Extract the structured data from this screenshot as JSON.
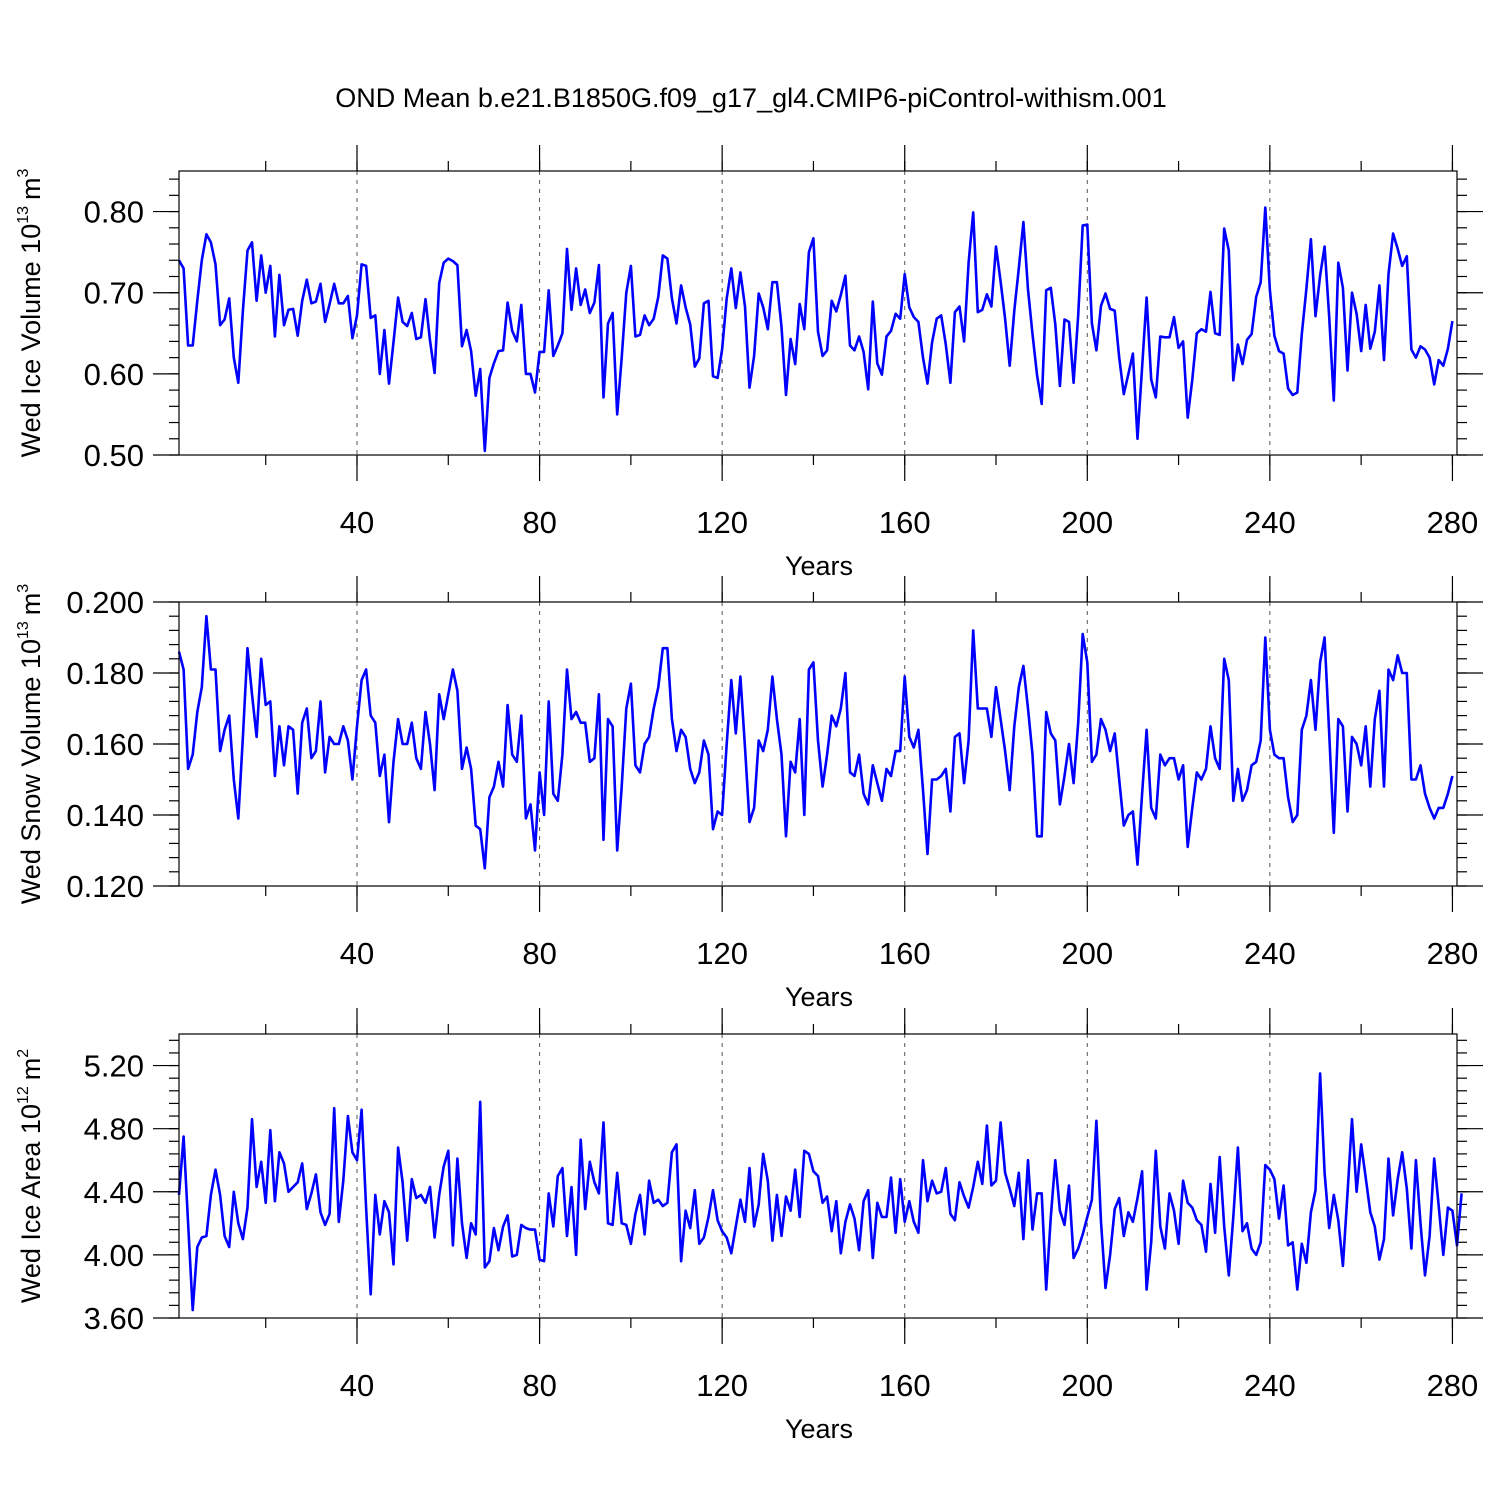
{
  "chart_data": {
    "title": "OND Mean b.e21.B1850G.f09_g17_gl4.CMIP6-piControl-withism.001",
    "panels": [
      {
        "type": "line",
        "id": "ice-volume",
        "ylabel": "Wed Ice Volume 10",
        "ylabel_exp": "13",
        "ylabel_unit": "m",
        "ylabel_unit_exp": "3",
        "xlabel": "Years",
        "xlim": [
          1,
          281
        ],
        "ylim": [
          0.5,
          0.85
        ],
        "xticks": [
          40,
          80,
          120,
          160,
          200,
          240,
          280
        ],
        "xtick_labels": [
          "40",
          "80",
          "120",
          "160",
          "200",
          "240",
          "280"
        ],
        "yticks": [
          0.5,
          0.6,
          0.7,
          0.8
        ],
        "ytick_labels": [
          "0.50",
          "0.60",
          "0.70",
          "0.80"
        ],
        "grid_x": [
          40,
          80,
          120,
          160,
          200,
          240
        ],
        "values": [
          0.74,
          0.73,
          0.635,
          0.635,
          0.69,
          0.74,
          0.772,
          0.762,
          0.735,
          0.66,
          0.667,
          0.693,
          0.62,
          0.589,
          0.678,
          0.752,
          0.762,
          0.69,
          0.746,
          0.7,
          0.733,
          0.646,
          0.722,
          0.66,
          0.679,
          0.68,
          0.647,
          0.69,
          0.716,
          0.687,
          0.689,
          0.711,
          0.664,
          0.686,
          0.711,
          0.687,
          0.687,
          0.696,
          0.644,
          0.672,
          0.735,
          0.733,
          0.669,
          0.672,
          0.6,
          0.654,
          0.588,
          0.639,
          0.694,
          0.664,
          0.659,
          0.675,
          0.643,
          0.645,
          0.692,
          0.641,
          0.601,
          0.712,
          0.737,
          0.742,
          0.739,
          0.734,
          0.634,
          0.654,
          0.628,
          0.573,
          0.606,
          0.505,
          0.595,
          0.613,
          0.628,
          0.629,
          0.688,
          0.653,
          0.64,
          0.685,
          0.6,
          0.6,
          0.577,
          0.627,
          0.627,
          0.703,
          0.622,
          0.635,
          0.65,
          0.754,
          0.679,
          0.73,
          0.685,
          0.704,
          0.675,
          0.688,
          0.734,
          0.571,
          0.662,
          0.675,
          0.55,
          0.62,
          0.7,
          0.733,
          0.646,
          0.648,
          0.672,
          0.66,
          0.668,
          0.695,
          0.746,
          0.742,
          0.693,
          0.662,
          0.709,
          0.682,
          0.661,
          0.609,
          0.619,
          0.687,
          0.69,
          0.597,
          0.595,
          0.63,
          0.693,
          0.73,
          0.681,
          0.725,
          0.683,
          0.583,
          0.622,
          0.699,
          0.682,
          0.655,
          0.713,
          0.713,
          0.658,
          0.574,
          0.643,
          0.612,
          0.686,
          0.655,
          0.75,
          0.767,
          0.652,
          0.622,
          0.629,
          0.69,
          0.677,
          0.697,
          0.721,
          0.635,
          0.629,
          0.646,
          0.627,
          0.581,
          0.689,
          0.613,
          0.599,
          0.646,
          0.653,
          0.674,
          0.668,
          0.723,
          0.682,
          0.67,
          0.664,
          0.62,
          0.588,
          0.639,
          0.668,
          0.672,
          0.636,
          0.589,
          0.676,
          0.683,
          0.64,
          0.737,
          0.799,
          0.676,
          0.679,
          0.698,
          0.683,
          0.757,
          0.714,
          0.668,
          0.61,
          0.678,
          0.73,
          0.787,
          0.704,
          0.649,
          0.598,
          0.563,
          0.703,
          0.706,
          0.661,
          0.585,
          0.667,
          0.664,
          0.589,
          0.672,
          0.783,
          0.784,
          0.662,
          0.629,
          0.684,
          0.699,
          0.68,
          0.678,
          0.62,
          0.575,
          0.6,
          0.625,
          0.52,
          0.608,
          0.694,
          0.593,
          0.571,
          0.646,
          0.645,
          0.645,
          0.67,
          0.632,
          0.64,
          0.546,
          0.593,
          0.65,
          0.655,
          0.652,
          0.701,
          0.65,
          0.648,
          0.779,
          0.752,
          0.592,
          0.636,
          0.612,
          0.642,
          0.649,
          0.695,
          0.713,
          0.805,
          0.703,
          0.647,
          0.628,
          0.625,
          0.582,
          0.574,
          0.577,
          0.649,
          0.705,
          0.766,
          0.671,
          0.721,
          0.757,
          0.67,
          0.567,
          0.737,
          0.706,
          0.604,
          0.7,
          0.674,
          0.628,
          0.685,
          0.631,
          0.652,
          0.709,
          0.617,
          0.723,
          0.773,
          0.754,
          0.733,
          0.745,
          0.63,
          0.62,
          0.634,
          0.63,
          0.62,
          0.587,
          0.617,
          0.61,
          0.631,
          0.665
        ]
      },
      {
        "type": "line",
        "id": "snow-volume",
        "ylabel": "Wed Snow Volume 10",
        "ylabel_exp": "13",
        "ylabel_unit": "m",
        "ylabel_unit_exp": "3",
        "xlabel": "Years",
        "xlim": [
          1,
          281
        ],
        "ylim": [
          0.12,
          0.2
        ],
        "xticks": [
          40,
          80,
          120,
          160,
          200,
          240,
          280
        ],
        "xtick_labels": [
          "40",
          "80",
          "120",
          "160",
          "200",
          "240",
          "280"
        ],
        "yticks": [
          0.12,
          0.14,
          0.16,
          0.18,
          0.2
        ],
        "ytick_labels": [
          "0.120",
          "0.140",
          "0.160",
          "0.180",
          "0.200"
        ],
        "grid_x": [
          40,
          80,
          120,
          160,
          200,
          240
        ],
        "values": [
          0.186,
          0.181,
          0.153,
          0.157,
          0.169,
          0.176,
          0.196,
          0.181,
          0.181,
          0.158,
          0.164,
          0.168,
          0.15,
          0.139,
          0.162,
          0.187,
          0.174,
          0.162,
          0.184,
          0.171,
          0.172,
          0.151,
          0.165,
          0.154,
          0.165,
          0.164,
          0.146,
          0.166,
          0.17,
          0.156,
          0.158,
          0.172,
          0.152,
          0.162,
          0.16,
          0.16,
          0.165,
          0.161,
          0.15,
          0.165,
          0.178,
          0.181,
          0.168,
          0.166,
          0.151,
          0.157,
          0.138,
          0.155,
          0.167,
          0.16,
          0.16,
          0.166,
          0.156,
          0.153,
          0.169,
          0.16,
          0.147,
          0.174,
          0.167,
          0.174,
          0.181,
          0.175,
          0.153,
          0.159,
          0.153,
          0.137,
          0.136,
          0.125,
          0.145,
          0.148,
          0.155,
          0.148,
          0.171,
          0.157,
          0.155,
          0.168,
          0.139,
          0.143,
          0.13,
          0.152,
          0.14,
          0.172,
          0.146,
          0.144,
          0.157,
          0.181,
          0.167,
          0.169,
          0.166,
          0.166,
          0.155,
          0.156,
          0.174,
          0.133,
          0.167,
          0.165,
          0.13,
          0.148,
          0.17,
          0.177,
          0.154,
          0.152,
          0.16,
          0.162,
          0.17,
          0.176,
          0.187,
          0.187,
          0.167,
          0.158,
          0.164,
          0.162,
          0.153,
          0.149,
          0.152,
          0.161,
          0.157,
          0.136,
          0.141,
          0.14,
          0.16,
          0.178,
          0.163,
          0.179,
          0.159,
          0.138,
          0.142,
          0.161,
          0.158,
          0.164,
          0.179,
          0.167,
          0.157,
          0.134,
          0.155,
          0.152,
          0.167,
          0.14,
          0.181,
          0.183,
          0.161,
          0.148,
          0.157,
          0.168,
          0.165,
          0.17,
          0.18,
          0.152,
          0.151,
          0.157,
          0.146,
          0.143,
          0.154,
          0.149,
          0.144,
          0.153,
          0.151,
          0.158,
          0.158,
          0.179,
          0.162,
          0.159,
          0.164,
          0.147,
          0.129,
          0.15,
          0.15,
          0.151,
          0.153,
          0.141,
          0.162,
          0.163,
          0.149,
          0.161,
          0.192,
          0.17,
          0.17,
          0.17,
          0.162,
          0.176,
          0.167,
          0.158,
          0.147,
          0.165,
          0.176,
          0.182,
          0.17,
          0.157,
          0.134,
          0.134,
          0.169,
          0.163,
          0.161,
          0.143,
          0.151,
          0.16,
          0.149,
          0.166,
          0.191,
          0.183,
          0.155,
          0.157,
          0.167,
          0.164,
          0.158,
          0.163,
          0.15,
          0.137,
          0.14,
          0.141,
          0.126,
          0.146,
          0.164,
          0.142,
          0.139,
          0.157,
          0.154,
          0.156,
          0.156,
          0.15,
          0.154,
          0.131,
          0.142,
          0.152,
          0.15,
          0.153,
          0.165,
          0.156,
          0.153,
          0.184,
          0.178,
          0.144,
          0.153,
          0.144,
          0.147,
          0.154,
          0.155,
          0.161,
          0.19,
          0.164,
          0.157,
          0.156,
          0.156,
          0.145,
          0.138,
          0.14,
          0.164,
          0.168,
          0.178,
          0.164,
          0.183,
          0.19,
          0.163,
          0.135,
          0.167,
          0.165,
          0.141,
          0.162,
          0.16,
          0.154,
          0.165,
          0.148,
          0.167,
          0.175,
          0.148,
          0.181,
          0.178,
          0.185,
          0.18,
          0.18,
          0.15,
          0.15,
          0.154,
          0.146,
          0.142,
          0.139,
          0.142,
          0.142,
          0.146,
          0.151
        ]
      },
      {
        "type": "line",
        "id": "ice-area",
        "ylabel": "Wed Ice Area 10",
        "ylabel_exp": "12",
        "ylabel_unit": "m",
        "ylabel_unit_exp": "2",
        "xlabel": "Years",
        "xlim": [
          1,
          281
        ],
        "ylim": [
          3.6,
          5.4
        ],
        "xticks": [
          40,
          80,
          120,
          160,
          200,
          240,
          280
        ],
        "xtick_labels": [
          "40",
          "80",
          "120",
          "160",
          "200",
          "240",
          "280"
        ],
        "yticks": [
          3.6,
          4.0,
          4.4,
          4.8,
          5.2
        ],
        "ytick_labels": [
          "3.60",
          "4.00",
          "4.40",
          "4.80",
          "5.20"
        ],
        "grid_x": [
          40,
          80,
          120,
          160,
          200,
          240
        ],
        "values": [
          4.38,
          4.75,
          4.2,
          3.65,
          4.05,
          4.11,
          4.12,
          4.38,
          4.54,
          4.38,
          4.12,
          4.05,
          4.4,
          4.2,
          4.1,
          4.3,
          4.86,
          4.43,
          4.59,
          4.33,
          4.79,
          4.34,
          4.65,
          4.58,
          4.4,
          4.43,
          4.46,
          4.58,
          4.29,
          4.39,
          4.51,
          4.27,
          4.19,
          4.26,
          4.93,
          4.21,
          4.47,
          4.88,
          4.65,
          4.6,
          4.92,
          4.3,
          3.75,
          4.38,
          4.13,
          4.34,
          4.27,
          3.94,
          4.68,
          4.46,
          4.09,
          4.48,
          4.36,
          4.38,
          4.33,
          4.43,
          4.11,
          4.38,
          4.56,
          4.66,
          4.06,
          4.61,
          4.2,
          3.98,
          4.2,
          4.13,
          4.97,
          3.92,
          3.96,
          4.17,
          4.03,
          4.18,
          4.25,
          3.99,
          4.0,
          4.19,
          4.17,
          4.16,
          4.16,
          3.97,
          3.96,
          4.39,
          4.18,
          4.5,
          4.55,
          4.12,
          4.43,
          4.0,
          4.73,
          4.29,
          4.59,
          4.46,
          4.39,
          4.84,
          4.2,
          4.19,
          4.52,
          4.2,
          4.19,
          4.07,
          4.26,
          4.38,
          4.13,
          4.47,
          4.33,
          4.35,
          4.31,
          4.33,
          4.65,
          4.7,
          3.96,
          4.28,
          4.17,
          4.41,
          4.07,
          4.11,
          4.24,
          4.41,
          4.22,
          4.15,
          4.11,
          4.01,
          4.18,
          4.35,
          4.21,
          4.55,
          4.18,
          4.32,
          4.64,
          4.47,
          4.09,
          4.38,
          4.12,
          4.37,
          4.28,
          4.54,
          4.24,
          4.66,
          4.64,
          4.53,
          4.5,
          4.33,
          4.37,
          4.15,
          4.34,
          4.01,
          4.21,
          4.32,
          4.23,
          4.03,
          4.34,
          4.41,
          3.98,
          4.33,
          4.24,
          4.24,
          4.49,
          4.14,
          4.48,
          4.21,
          4.34,
          4.21,
          4.14,
          4.6,
          4.34,
          4.47,
          4.39,
          4.4,
          4.55,
          4.26,
          4.22,
          4.46,
          4.37,
          4.3,
          4.43,
          4.59,
          4.45,
          4.82,
          4.44,
          4.47,
          4.84,
          4.52,
          4.42,
          4.31,
          4.52,
          4.1,
          4.6,
          4.16,
          4.39,
          4.39,
          3.78,
          4.24,
          4.6,
          4.28,
          4.19,
          4.44,
          3.98,
          4.04,
          4.13,
          4.24,
          4.35,
          4.85,
          4.21,
          3.79,
          4.0,
          4.29,
          4.36,
          4.12,
          4.27,
          4.21,
          4.36,
          4.53,
          3.78,
          4.08,
          4.66,
          4.18,
          4.04,
          4.39,
          4.28,
          4.07,
          4.47,
          4.33,
          4.3,
          4.22,
          4.19,
          4.02,
          4.45,
          4.14,
          4.62,
          4.18,
          3.87,
          4.24,
          4.68,
          4.15,
          4.2,
          4.04,
          4.0,
          4.08,
          4.57,
          4.54,
          4.48,
          4.23,
          4.44,
          4.06,
          4.08,
          3.78,
          4.07,
          3.95,
          4.27,
          4.41,
          5.15,
          4.52,
          4.17,
          4.38,
          4.22,
          3.93,
          4.39,
          4.86,
          4.4,
          4.7,
          4.49,
          4.27,
          4.18,
          3.97,
          4.1,
          4.61,
          4.25,
          4.48,
          4.65,
          4.42,
          4.04,
          4.6,
          4.2,
          3.87,
          4.12,
          4.61,
          4.31,
          4.0,
          4.3,
          4.28,
          4.06,
          4.39
        ]
      }
    ]
  }
}
